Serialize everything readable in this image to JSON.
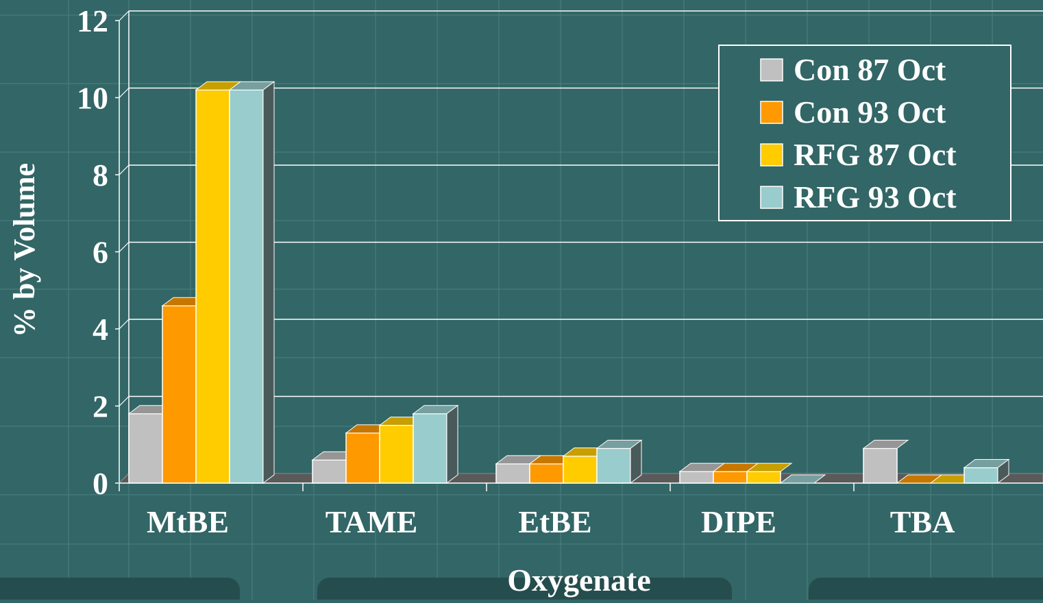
{
  "chart_data": {
    "type": "bar",
    "title": "",
    "xlabel": "Oxygenate",
    "ylabel": "% by Volume",
    "categories": [
      "MtBE",
      "TAME",
      "EtBE",
      "DIPE",
      "TBA"
    ],
    "y_ticks": [
      "0",
      "2",
      "4",
      "6",
      "8",
      "10",
      "12"
    ],
    "ylim": [
      0,
      12
    ],
    "grid": true,
    "legend_position": "top-right",
    "series": [
      {
        "name": "Con 87 Oct",
        "color": "#c0c0c0",
        "values": [
          1.8,
          0.6,
          0.5,
          0.3,
          0.9
        ]
      },
      {
        "name": "Con 93 Oct",
        "color": "#ff9900",
        "values": [
          4.6,
          1.3,
          0.5,
          0.3,
          0.0
        ]
      },
      {
        "name": "RFG 87 Oct",
        "color": "#ffcc00",
        "values": [
          10.2,
          1.5,
          0.7,
          0.3,
          0.0
        ]
      },
      {
        "name": "RFG 93 Oct",
        "color": "#99cccc",
        "values": [
          10.2,
          1.8,
          0.9,
          0.0,
          0.4
        ]
      }
    ]
  }
}
